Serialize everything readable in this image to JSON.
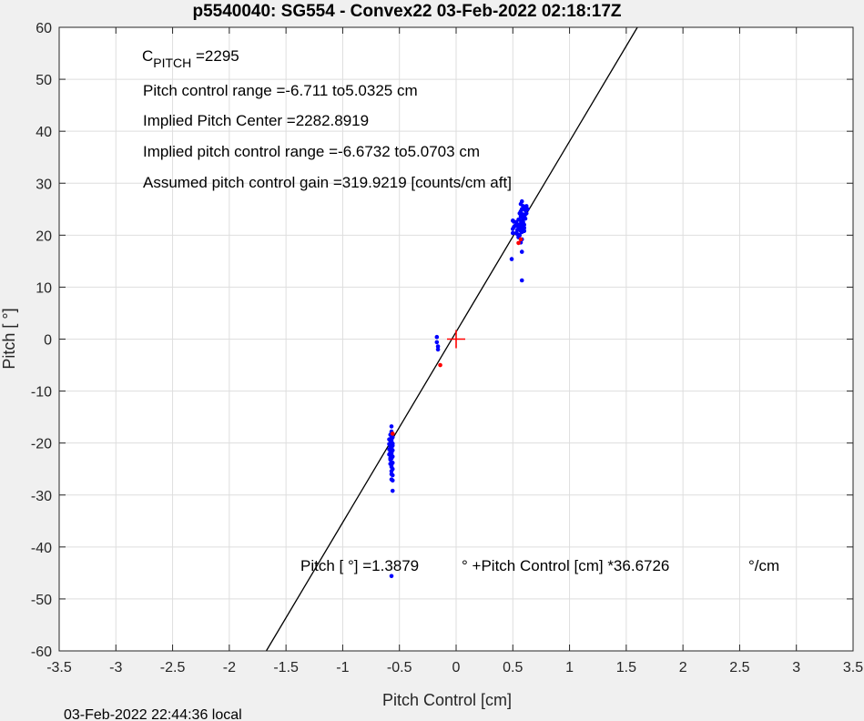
{
  "chart_data": {
    "type": "scatter",
    "title": "p5540040: SG554 - Convex22 03-Feb-2022 02:18:17Z",
    "xlabel": "Pitch Control [cm]",
    "ylabel": "Pitch [ °]",
    "xlim": [
      -3.5,
      3.5
    ],
    "ylim": [
      -60,
      60
    ],
    "xticks": [
      -3.5,
      -3,
      -2.5,
      -2,
      -1.5,
      -1,
      -0.5,
      0,
      0.5,
      1,
      1.5,
      2,
      2.5,
      3,
      3.5
    ],
    "yticks": [
      -60,
      -50,
      -40,
      -30,
      -20,
      -10,
      0,
      10,
      20,
      30,
      40,
      50,
      60
    ],
    "xtick_labels": [
      "-3.5",
      "-3",
      "-2.5",
      "-2",
      "-1.5",
      "-1",
      "-0.5",
      "0",
      "0.5",
      "1",
      "1.5",
      "2",
      "2.5",
      "3",
      "3.5"
    ],
    "ytick_labels": [
      "-60",
      "-50",
      "-40",
      "-30",
      "-20",
      "-10",
      "0",
      "10",
      "20",
      "30",
      "40",
      "50",
      "60"
    ],
    "grid": true,
    "fit_line": {
      "intercept": 1.3879,
      "slope": 36.6726,
      "color": "#000000"
    },
    "center_marker": {
      "x": 0,
      "y": 0,
      "color": "#ff0000"
    },
    "annotations": {
      "c_pitch_main": "C",
      "c_pitch_sub": "PITCH",
      "c_pitch_value": " =2295",
      "line2": "Pitch control range =-6.711  to5.0325 cm",
      "line3": "Implied Pitch Center =2282.8919",
      "line4": "Implied pitch control range =-6.6732  to5.0703 cm",
      "line5": "Assumed pitch control gain =319.9219 [counts/cm aft]",
      "fit_part1": "Pitch [  °] =1.3879",
      "fit_part2": "° +Pitch Control [cm] *36.6726",
      "fit_part3": "°/cm"
    },
    "footer": "03-Feb-2022 22:44:36 local",
    "series": [
      {
        "color": "#0000ff",
        "x": [
          -0.57,
          -0.57,
          -0.57,
          -0.57,
          -0.57,
          -0.57,
          -0.57,
          -0.57,
          -0.57,
          -0.57,
          -0.57,
          -0.57,
          -0.57,
          -0.57,
          -0.58,
          -0.58,
          -0.58,
          -0.58,
          -0.58,
          -0.58,
          -0.56,
          -0.56,
          -0.56,
          -0.56,
          -0.56,
          -0.56,
          -0.56,
          -0.56,
          -0.56,
          -0.59,
          -0.59,
          -0.59,
          -0.59,
          -0.57,
          -0.57,
          -0.57,
          -0.56,
          -0.58,
          -0.57,
          -0.57,
          -0.57,
          -0.57,
          -0.57,
          -0.57,
          -0.17,
          -0.17,
          -0.16,
          -0.16,
          0.5,
          0.5,
          0.51,
          0.52,
          0.53,
          0.54,
          0.55,
          0.55,
          0.56,
          0.56,
          0.57,
          0.57,
          0.57,
          0.58,
          0.58,
          0.58,
          0.58,
          0.59,
          0.59,
          0.6,
          0.6,
          0.6,
          0.61,
          0.61,
          0.62,
          0.62,
          0.63,
          0.55,
          0.56,
          0.57,
          0.58,
          0.59,
          0.6,
          0.58,
          0.57,
          0.56,
          0.55,
          0.54,
          0.53,
          0.56,
          0.57,
          0.59,
          0.6,
          0.61,
          0.59,
          0.58,
          0.57,
          0.58,
          0.58,
          0.49,
          0.5,
          0.51
        ],
        "y": [
          -16.8,
          -17.8,
          -18.6,
          -19.2,
          -19.8,
          -20.3,
          -20.8,
          -21.3,
          -21.8,
          -22.4,
          -23.0,
          -23.8,
          -24.6,
          -25.4,
          -18.4,
          -19.5,
          -20.6,
          -21.8,
          -22.9,
          -24.0,
          -18.9,
          -20.1,
          -21.4,
          -22.6,
          -23.8,
          -25.0,
          -26.2,
          -27.2,
          -29.2,
          -19.3,
          -20.2,
          -21.2,
          -22.2,
          -26.0,
          -27.0,
          -19.0,
          -20.5,
          -23.2,
          -24.2,
          -22.0,
          -21.0,
          -20.0,
          -19.4,
          -45.6,
          0.4,
          -0.6,
          -1.4,
          -2.0,
          20.4,
          21.2,
          22.6,
          21.8,
          22.5,
          20.2,
          21.5,
          23.0,
          24.2,
          22.0,
          20.8,
          22.8,
          23.6,
          25.0,
          26.5,
          23.8,
          21.6,
          24.0,
          22.4,
          25.0,
          23.6,
          22.0,
          24.8,
          23.2,
          25.6,
          24.2,
          25.0,
          19.6,
          21.0,
          22.2,
          20.6,
          23.4,
          21.4,
          19.2,
          18.6,
          20.0,
          22.0,
          21.0,
          20.4,
          21.8,
          24.6,
          25.6,
          20.8,
          24.0,
          22.6,
          21.2,
          26.0,
          16.8,
          11.3,
          15.4,
          22.8,
          21.6
        ]
      },
      {
        "color": "#ff0000",
        "x": [
          -0.56,
          -0.14,
          0.55,
          0.57
        ],
        "y": [
          -18.2,
          -5.0,
          18.5,
          19.2
        ]
      }
    ]
  }
}
